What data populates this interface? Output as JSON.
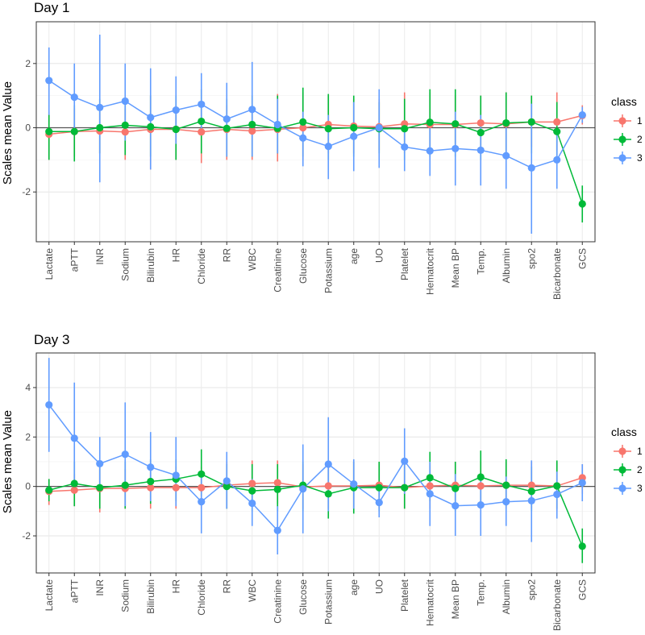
{
  "colors": {
    "1": "#F8766D",
    "2": "#00BA38",
    "3": "#619CFF"
  },
  "legend": {
    "title": "class",
    "labels": [
      "1",
      "2",
      "3"
    ]
  },
  "chart_data": [
    {
      "type": "scatter",
      "title": "Day 1",
      "xlabel": "",
      "ylabel": "Scales mean Value",
      "ylim": [
        -3.55,
        3.3
      ],
      "yticks": [
        -2,
        0,
        2
      ],
      "grid": true,
      "legend_position": "right",
      "categories": [
        "Lactate",
        "aPTT",
        "INR",
        "Sodium",
        "Bilirubin",
        "HR",
        "Chloride",
        "RR",
        "WBC",
        "Creatinine",
        "Glucose",
        "Potassium",
        "age",
        "UO",
        "Platelet",
        "Hematocrit",
        "Mean BP",
        "Temp.",
        "Albumin",
        "spo2",
        "Bicarbonate",
        "GCS"
      ],
      "series": [
        {
          "name": "1",
          "values": [
            -0.2,
            -0.12,
            -0.1,
            -0.13,
            -0.05,
            -0.05,
            -0.13,
            -0.05,
            -0.1,
            -0.05,
            0,
            0.1,
            0.05,
            0.03,
            0.12,
            0.1,
            0.1,
            0.15,
            0.12,
            0.18,
            0.18,
            0.38
          ],
          "err": [
            [
              -1.0,
              0.5
            ],
            [
              -0.9,
              0.6
            ],
            [
              -0.8,
              0.5
            ],
            [
              -1.0,
              0.6
            ],
            [
              -1.3,
              1.0
            ],
            [
              -1.0,
              0.7
            ],
            [
              -1.1,
              0.8
            ],
            [
              -1.0,
              0.7
            ],
            [
              -1.0,
              0.6
            ],
            [
              -1.05,
              1.05
            ],
            [
              -1.0,
              1.1
            ],
            [
              -0.8,
              1.0
            ],
            [
              -0.8,
              0.9
            ],
            [
              -0.7,
              0.9
            ],
            [
              -0.8,
              1.1
            ],
            [
              -0.8,
              1.1
            ],
            [
              -0.7,
              1.0
            ],
            [
              -0.6,
              1.0
            ],
            [
              -0.7,
              1.1
            ],
            [
              -0.6,
              1.0
            ],
            [
              -0.7,
              1.1
            ],
            [
              0.1,
              0.7
            ]
          ]
        },
        {
          "name": "2",
          "values": [
            -0.12,
            -0.12,
            0,
            0.08,
            0.03,
            -0.05,
            0.2,
            -0.02,
            0.1,
            -0.02,
            0.18,
            -0.03,
            0,
            -0.03,
            -0.03,
            0.17,
            0.12,
            -0.15,
            0.15,
            0.18,
            -0.12,
            -2.37
          ],
          "err": [
            [
              -1.0,
              0.4
            ],
            [
              -1.05,
              0.7
            ],
            [
              -0.8,
              0.9
            ],
            [
              -0.85,
              0.9
            ],
            [
              -0.9,
              1.0
            ],
            [
              -1.0,
              1.0
            ],
            [
              -0.8,
              1.2
            ],
            [
              -0.9,
              0.9
            ],
            [
              -0.9,
              1.0
            ],
            [
              -0.8,
              1.0
            ],
            [
              -0.9,
              1.25
            ],
            [
              -1.0,
              1.05
            ],
            [
              -0.9,
              1.0
            ],
            [
              -0.8,
              0.8
            ],
            [
              -1.0,
              0.9
            ],
            [
              -0.9,
              1.2
            ],
            [
              -0.9,
              1.2
            ],
            [
              -1.0,
              1.0
            ],
            [
              -0.9,
              1.1
            ],
            [
              -0.8,
              1.0
            ],
            [
              -0.9,
              0.8
            ],
            [
              -2.95,
              -1.8
            ]
          ]
        },
        {
          "name": "3",
          "values": [
            1.47,
            0.95,
            0.63,
            0.83,
            0.32,
            0.55,
            0.73,
            0.27,
            0.57,
            0.1,
            -0.32,
            -0.58,
            -0.27,
            0,
            -0.6,
            -0.72,
            -0.65,
            -0.7,
            -0.87,
            -1.25,
            -1.0,
            0.4
          ],
          "err": [
            [
              0.4,
              2.5
            ],
            [
              -0.1,
              2.0
            ],
            [
              -1.7,
              2.9
            ],
            [
              -0.4,
              2.0
            ],
            [
              -1.3,
              1.85
            ],
            [
              -0.5,
              1.6
            ],
            [
              -0.2,
              1.7
            ],
            [
              -0.9,
              1.4
            ],
            [
              -0.9,
              2.05
            ],
            [
              -0.8,
              0.9
            ],
            [
              -1.2,
              0.5
            ],
            [
              -1.6,
              0.4
            ],
            [
              -1.35,
              0.8
            ],
            [
              -1.25,
              1.2
            ],
            [
              -1.35,
              0.2
            ],
            [
              -1.5,
              0.1
            ],
            [
              -1.8,
              0.5
            ],
            [
              -1.8,
              0.4
            ],
            [
              -1.9,
              0.2
            ],
            [
              -3.3,
              0.75
            ],
            [
              -1.9,
              -0.1
            ],
            [
              0.15,
              0.65
            ]
          ]
        }
      ]
    },
    {
      "type": "scatter",
      "title": "Day 3",
      "xlabel": "",
      "ylabel": "Scales mean Value",
      "ylim": [
        -3.5,
        5.4
      ],
      "yticks": [
        -2,
        0,
        2,
        4
      ],
      "grid": true,
      "legend_position": "right",
      "categories": [
        "Lactate",
        "aPTT",
        "INR",
        "Sodium",
        "Bilirubin",
        "HR",
        "Chloride",
        "RR",
        "WBC",
        "Creatinine",
        "Glucose",
        "Potassium",
        "age",
        "UO",
        "Platelet",
        "Hematocrit",
        "Mean BP",
        "Temp.",
        "Albumin",
        "spo2",
        "Bicarbonate",
        "GCS"
      ],
      "series": [
        {
          "name": "1",
          "values": [
            -0.2,
            -0.15,
            -0.08,
            -0.08,
            -0.05,
            -0.05,
            -0.05,
            0.05,
            0.12,
            0.15,
            -0.02,
            0.02,
            0.02,
            0.05,
            -0.05,
            0.02,
            0.05,
            0.02,
            0.05,
            0.05,
            0.02,
            0.35
          ],
          "err": [
            [
              -0.75,
              0.3
            ],
            [
              -0.8,
              0.5
            ],
            [
              -1.05,
              0.8
            ],
            [
              -0.9,
              0.7
            ],
            [
              -0.9,
              0.9
            ],
            [
              -0.9,
              0.8
            ],
            [
              -0.9,
              0.8
            ],
            [
              -0.9,
              1.0
            ],
            [
              -0.8,
              1.05
            ],
            [
              -0.7,
              1.05
            ],
            [
              -0.9,
              0.9
            ],
            [
              -0.9,
              0.9
            ],
            [
              -0.9,
              1.0
            ],
            [
              -0.9,
              1.0
            ],
            [
              -0.9,
              0.9
            ],
            [
              -0.9,
              0.95
            ],
            [
              -0.9,
              1.0
            ],
            [
              -0.9,
              1.0
            ],
            [
              -0.9,
              1.0
            ],
            [
              -0.9,
              1.0
            ],
            [
              -1.0,
              1.0
            ],
            [
              -0.3,
              0.9
            ]
          ]
        },
        {
          "name": "2",
          "values": [
            -0.15,
            0.12,
            -0.05,
            0.05,
            0.2,
            0.3,
            0.5,
            0,
            -0.18,
            -0.12,
            0.05,
            -0.3,
            -0.05,
            -0.05,
            -0.05,
            0.35,
            -0.08,
            0.38,
            0.05,
            -0.2,
            0.02,
            -2.42
          ],
          "err": [
            [
              -0.6,
              0.3
            ],
            [
              -0.8,
              1.0
            ],
            [
              -0.9,
              0.8
            ],
            [
              -0.9,
              1.0
            ],
            [
              -0.7,
              1.1
            ],
            [
              -0.6,
              1.1
            ],
            [
              -0.4,
              1.5
            ],
            [
              -0.9,
              0.9
            ],
            [
              -1.0,
              0.9
            ],
            [
              -1.0,
              0.9
            ],
            [
              -1.0,
              1.0
            ],
            [
              -1.3,
              0.7
            ],
            [
              -1.1,
              1.0
            ],
            [
              -1.0,
              1.0
            ],
            [
              -0.9,
              0.9
            ],
            [
              -0.6,
              1.4
            ],
            [
              -1.0,
              1.0
            ],
            [
              -0.6,
              1.45
            ],
            [
              -0.8,
              1.1
            ],
            [
              -1.0,
              0.8
            ],
            [
              -0.9,
              1.05
            ],
            [
              -3.1,
              -1.7
            ]
          ]
        },
        {
          "name": "3",
          "values": [
            3.3,
            1.95,
            0.92,
            1.3,
            0.78,
            0.45,
            -0.62,
            0.22,
            -0.68,
            -1.78,
            -0.1,
            0.9,
            0.1,
            -0.65,
            1.02,
            -0.3,
            -0.78,
            -0.75,
            -0.62,
            -0.58,
            -0.32,
            0.15
          ],
          "err": [
            [
              1.4,
              5.2
            ],
            [
              0,
              4.2
            ],
            [
              -0.2,
              2.0
            ],
            [
              -0.8,
              3.4
            ],
            [
              -0.6,
              2.2
            ],
            [
              -0.8,
              2.0
            ],
            [
              -1.9,
              0.6
            ],
            [
              -0.9,
              1.4
            ],
            [
              -1.6,
              0.3
            ],
            [
              -2.75,
              -0.8
            ],
            [
              -1.9,
              1.7
            ],
            [
              -1.0,
              2.8
            ],
            [
              -0.9,
              1.1
            ],
            [
              -1.25,
              0
            ],
            [
              -0.3,
              2.35
            ],
            [
              -1.6,
              1.0
            ],
            [
              -2.0,
              0.5
            ],
            [
              -2.0,
              0.5
            ],
            [
              -1.6,
              0.4
            ],
            [
              -2.25,
              1.05
            ],
            [
              -1.3,
              0.6
            ],
            [
              -0.6,
              0.9
            ]
          ]
        }
      ]
    }
  ]
}
